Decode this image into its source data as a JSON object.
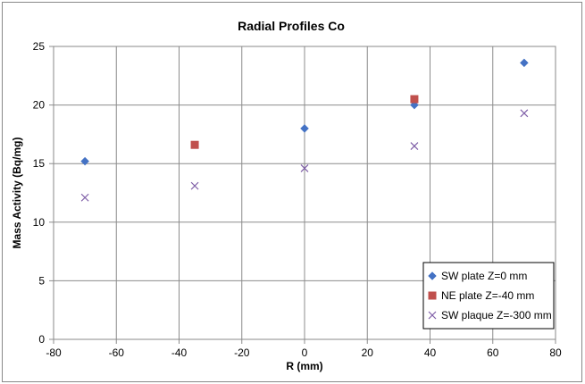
{
  "chart_data": {
    "type": "scatter",
    "title": "Radial Profiles Co",
    "xlabel": "R (mm)",
    "ylabel": "Mass Activity (Bq/mg)",
    "xlim": [
      -80,
      80
    ],
    "ylim": [
      0,
      25
    ],
    "x_ticks": [
      -80,
      -60,
      -40,
      -20,
      0,
      20,
      40,
      60,
      80
    ],
    "y_ticks": [
      0,
      5,
      10,
      15,
      20,
      25
    ],
    "grid": true,
    "legend_position": "bottom-right",
    "series": [
      {
        "name": "SW plate Z=0 mm",
        "marker": "diamond",
        "color": "#4472C4",
        "points": [
          [
            -70,
            15.2
          ],
          [
            0,
            18.0
          ],
          [
            35,
            20.0
          ],
          [
            70,
            23.6
          ]
        ]
      },
      {
        "name": "NE plate Z=-40 mm",
        "marker": "square",
        "color": "#C0504D",
        "points": [
          [
            -35,
            16.6
          ],
          [
            35,
            20.5
          ]
        ]
      },
      {
        "name": "SW plaque Z=-300 mm",
        "marker": "x",
        "color": "#7F5FA8",
        "points": [
          [
            -70,
            12.1
          ],
          [
            -35,
            13.1
          ],
          [
            0,
            14.6
          ],
          [
            35,
            16.5
          ],
          [
            70,
            19.3
          ]
        ]
      }
    ]
  }
}
